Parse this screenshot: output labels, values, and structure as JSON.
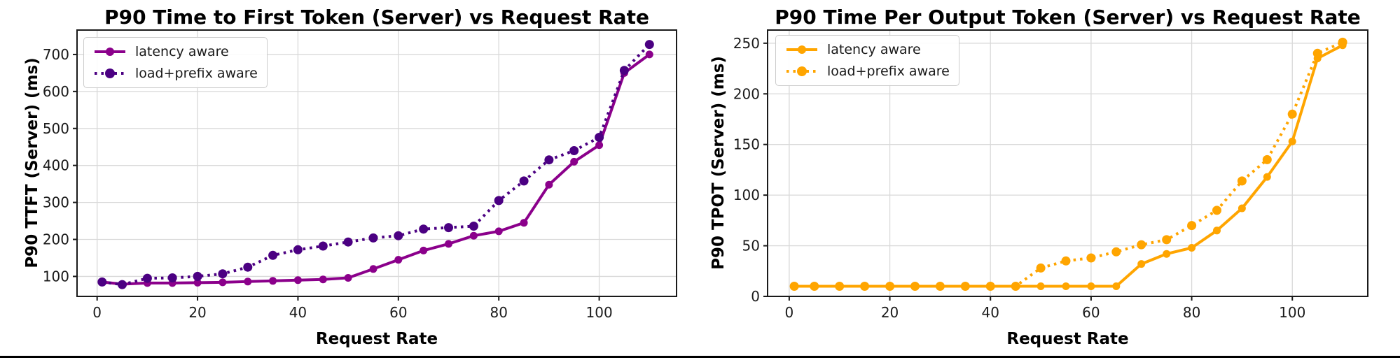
{
  "page": {
    "background": "#ffffff",
    "bottom_rule_color": "#000000",
    "grid_color": "#d9d9d9",
    "spine_color": "#1a1a1a",
    "tick_label_color": "#1a1a1a"
  },
  "chart_data": [
    {
      "type": "line",
      "title": "P90 Time to First Token (Server) vs Request Rate",
      "xlabel": "Request Rate",
      "ylabel": "P90 TTFT (Server) (ms)",
      "xlim": [
        -4,
        115.4
      ],
      "ylim": [
        46,
        766
      ],
      "x_ticks": [
        0,
        20,
        40,
        60,
        80,
        100
      ],
      "y_ticks": [
        100,
        200,
        300,
        400,
        500,
        600,
        700
      ],
      "grid": true,
      "legend_position": "upper-left",
      "x": [
        1,
        5,
        10,
        15,
        20,
        25,
        30,
        35,
        40,
        45,
        50,
        55,
        60,
        65,
        70,
        75,
        80,
        85,
        90,
        95,
        100,
        105,
        110
      ],
      "series": [
        {
          "name": "latency aware",
          "style": "solid",
          "marker": "circle",
          "color": "#8B008B",
          "values": [
            85,
            79,
            82,
            82,
            83,
            84,
            86,
            88,
            90,
            92,
            96,
            120,
            145,
            170,
            188,
            210,
            222,
            245,
            348,
            410,
            455,
            650,
            700
          ]
        },
        {
          "name": "load+prefix aware",
          "style": "dotted",
          "marker": "circle",
          "color": "#4B0082",
          "values": [
            85,
            78,
            95,
            96,
            100,
            107,
            125,
            157,
            172,
            182,
            193,
            204,
            210,
            228,
            232,
            236,
            305,
            358,
            415,
            440,
            476,
            657,
            727
          ]
        }
      ]
    },
    {
      "type": "line",
      "title": "P90 Time Per Output Token (Server) vs Request Rate",
      "xlabel": "Request Rate",
      "ylabel": "P90 TPOT (Server) (ms)",
      "xlim": [
        -4.3,
        115
      ],
      "ylim": [
        0,
        263
      ],
      "x_ticks": [
        0,
        20,
        40,
        60,
        80,
        100
      ],
      "y_ticks": [
        0,
        50,
        100,
        150,
        200,
        250
      ],
      "grid": true,
      "legend_position": "upper-left",
      "x": [
        1,
        5,
        10,
        15,
        20,
        25,
        30,
        35,
        40,
        45,
        50,
        55,
        60,
        65,
        70,
        75,
        80,
        85,
        90,
        95,
        100,
        105,
        110
      ],
      "series": [
        {
          "name": "latency aware",
          "style": "solid",
          "marker": "circle",
          "color": "#FFA500",
          "values": [
            10,
            10,
            10,
            10,
            10,
            10,
            10,
            10,
            10,
            10,
            10,
            10,
            10,
            10,
            32,
            42,
            48,
            65,
            87,
            118,
            153,
            235,
            248
          ]
        },
        {
          "name": "load+prefix aware",
          "style": "dotted",
          "marker": "circle",
          "color": "#FFA500",
          "values": [
            10,
            10,
            10,
            10,
            10,
            10,
            10,
            10,
            10,
            10,
            28,
            35,
            38,
            44,
            51,
            56,
            70,
            85,
            114,
            135,
            180,
            240,
            251
          ]
        }
      ]
    }
  ]
}
